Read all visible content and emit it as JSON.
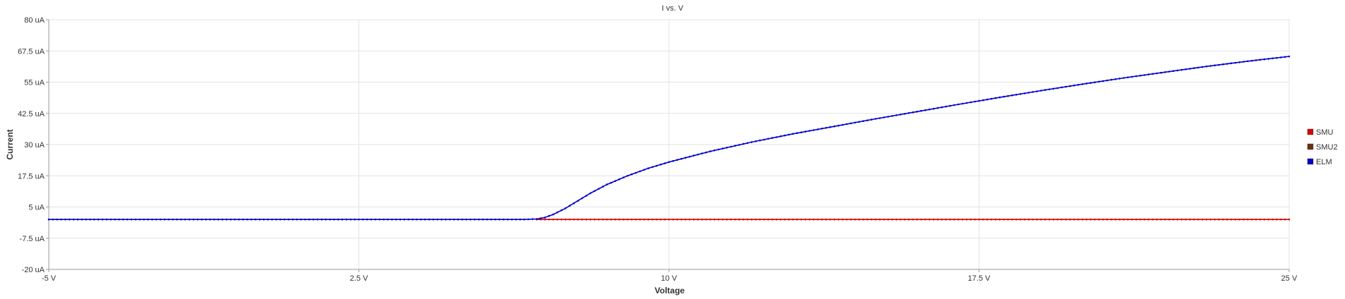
{
  "chart_data": {
    "type": "line",
    "title": "I vs. V",
    "xlabel": "Voltage",
    "ylabel": "Current",
    "xlim": [
      -5,
      25
    ],
    "ylim": [
      -20,
      80
    ],
    "grid": true,
    "legend_position": "right",
    "x_ticks": [
      -5,
      2.5,
      10,
      17.5,
      25
    ],
    "x_tick_labels": [
      "-5 V",
      "2.5 V",
      "10 V",
      "17.5 V",
      "25 V"
    ],
    "y_ticks": [
      -20,
      -7.5,
      5,
      17.5,
      30,
      42.5,
      55,
      67.5,
      80
    ],
    "y_tick_labels": [
      "-20 uA",
      "-7.5 uA",
      "5 uA",
      "17.5 uA",
      "30 uA",
      "42.5 uA",
      "55 uA",
      "67.5 uA",
      "80 uA"
    ],
    "series": [
      {
        "name": "SMU",
        "color": "#dd0000",
        "x": [
          6.8,
          10,
          13,
          16,
          19,
          22,
          25
        ],
        "y": [
          0,
          0,
          0,
          0,
          0,
          0,
          0
        ]
      },
      {
        "name": "SMU2",
        "color": "#6b2e0e",
        "x": [],
        "y": []
      },
      {
        "name": "ELM",
        "color": "#0000cc",
        "x": [
          -5,
          -2.5,
          0,
          2.5,
          5,
          6.5,
          6.8,
          7.0,
          7.2,
          7.5,
          7.8,
          8.1,
          8.5,
          9.0,
          9.5,
          10.0,
          11.0,
          12.0,
          13.0,
          14.0,
          15.0,
          16.0,
          17.0,
          18.0,
          19.0,
          20.0,
          21.0,
          22.0,
          23.0,
          24.0,
          25.0
        ],
        "y": [
          0,
          0,
          0,
          0,
          0,
          0,
          0.2,
          0.8,
          2.0,
          4.5,
          7.5,
          10.5,
          14.0,
          17.5,
          20.5,
          23.0,
          27.3,
          31.0,
          34.3,
          37.3,
          40.3,
          43.2,
          46.1,
          48.9,
          51.6,
          54.2,
          56.7,
          59.0,
          61.3,
          63.4,
          65.3
        ]
      }
    ]
  }
}
